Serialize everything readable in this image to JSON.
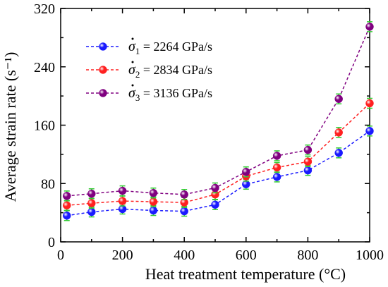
{
  "chart_data": {
    "type": "line",
    "xlabel": "Heat treatment temperature (°C)",
    "ylabel": "Average strain rate (s⁻¹)",
    "xlim": [
      0,
      1000
    ],
    "ylim": [
      0,
      320
    ],
    "xticks": [
      0,
      200,
      400,
      600,
      800,
      1000
    ],
    "yticks": [
      0,
      80,
      160,
      240,
      320
    ],
    "x": [
      20,
      100,
      200,
      300,
      400,
      500,
      600,
      700,
      800,
      900,
      1000
    ],
    "legend_position": "top-left",
    "grid": false,
    "series": [
      {
        "name": "σ̇₁ = 2264 GPa/s",
        "symbol": "σ",
        "sub": "1",
        "value_text": " = 2264 GPa/s",
        "color": "#1a1aff",
        "values": [
          36,
          41,
          45,
          43,
          42,
          51,
          79,
          89,
          98,
          122,
          152
        ]
      },
      {
        "name": "σ̇₂ = 2834 GPa/s",
        "symbol": "σ",
        "sub": "2",
        "value_text": " = 2834 GPa/s",
        "color": "#ff2020",
        "values": [
          50,
          53,
          56,
          55,
          54,
          65,
          90,
          102,
          110,
          150,
          190
        ]
      },
      {
        "name": "σ̇₃ = 3136 GPa/s",
        "symbol": "σ",
        "sub": "3",
        "value_text": " = 3136 GPa/s",
        "color": "#800080",
        "values": [
          63,
          66,
          70,
          67,
          65,
          74,
          96,
          118,
          126,
          196,
          295
        ]
      }
    ],
    "error_bar_color": "#33cc33"
  }
}
